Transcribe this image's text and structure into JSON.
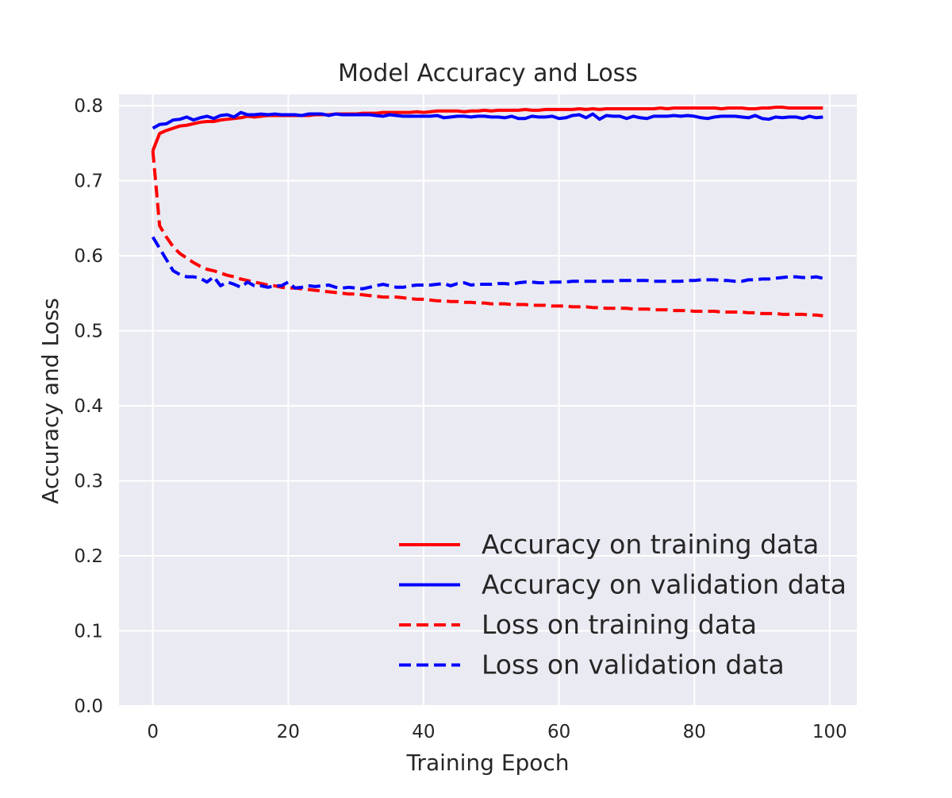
{
  "chart_data": {
    "type": "line",
    "title": "Model Accuracy and Loss",
    "xlabel": "Training Epoch",
    "ylabel": "Accuracy and Loss",
    "xlim": [
      -5,
      104
    ],
    "ylim": [
      0.0,
      0.815
    ],
    "xticks": [
      0,
      20,
      40,
      60,
      80,
      100
    ],
    "xtick_labels": [
      "0",
      "20",
      "40",
      "60",
      "80",
      "100"
    ],
    "yticks": [
      0.0,
      0.1,
      0.2,
      0.3,
      0.4,
      0.5,
      0.6,
      0.7,
      0.8
    ],
    "ytick_labels": [
      "0.0",
      "0.1",
      "0.2",
      "0.3",
      "0.4",
      "0.5",
      "0.6",
      "0.7",
      "0.8"
    ],
    "grid": true,
    "legend_position": "bottom-right",
    "background": "#eaeaf2",
    "grid_color": "#ffffff",
    "x": [
      0,
      1,
      2,
      3,
      4,
      5,
      6,
      7,
      8,
      9,
      10,
      11,
      12,
      13,
      14,
      15,
      16,
      17,
      18,
      19,
      20,
      21,
      22,
      23,
      24,
      25,
      26,
      27,
      28,
      29,
      30,
      31,
      32,
      33,
      34,
      35,
      36,
      37,
      38,
      39,
      40,
      41,
      42,
      43,
      44,
      45,
      46,
      47,
      48,
      49,
      50,
      51,
      52,
      53,
      54,
      55,
      56,
      57,
      58,
      59,
      60,
      61,
      62,
      63,
      64,
      65,
      66,
      67,
      68,
      69,
      70,
      71,
      72,
      73,
      74,
      75,
      76,
      77,
      78,
      79,
      80,
      81,
      82,
      83,
      84,
      85,
      86,
      87,
      88,
      89,
      90,
      91,
      92,
      93,
      94,
      95,
      96,
      97,
      98,
      99
    ],
    "series": [
      {
        "name": "Accuracy on training data",
        "color": "#ff0000",
        "dash": "solid",
        "values": [
          0.74,
          0.763,
          0.767,
          0.77,
          0.773,
          0.774,
          0.776,
          0.778,
          0.779,
          0.779,
          0.781,
          0.782,
          0.783,
          0.784,
          0.786,
          0.785,
          0.786,
          0.787,
          0.787,
          0.787,
          0.787,
          0.787,
          0.787,
          0.787,
          0.788,
          0.788,
          0.788,
          0.789,
          0.789,
          0.789,
          0.789,
          0.79,
          0.79,
          0.79,
          0.791,
          0.791,
          0.791,
          0.791,
          0.791,
          0.792,
          0.791,
          0.792,
          0.793,
          0.793,
          0.793,
          0.793,
          0.792,
          0.793,
          0.793,
          0.794,
          0.793,
          0.794,
          0.794,
          0.794,
          0.794,
          0.795,
          0.794,
          0.794,
          0.795,
          0.795,
          0.795,
          0.795,
          0.795,
          0.796,
          0.795,
          0.796,
          0.795,
          0.796,
          0.796,
          0.796,
          0.796,
          0.796,
          0.796,
          0.796,
          0.796,
          0.797,
          0.796,
          0.797,
          0.797,
          0.797,
          0.797,
          0.797,
          0.797,
          0.797,
          0.796,
          0.797,
          0.797,
          0.797,
          0.796,
          0.796,
          0.797,
          0.797,
          0.798,
          0.798,
          0.797,
          0.797,
          0.797,
          0.797,
          0.797,
          0.797
        ]
      },
      {
        "name": "Accuracy on validation data",
        "color": "#0000ff",
        "dash": "solid",
        "values": [
          0.77,
          0.775,
          0.776,
          0.781,
          0.782,
          0.785,
          0.781,
          0.784,
          0.786,
          0.783,
          0.787,
          0.788,
          0.785,
          0.791,
          0.788,
          0.788,
          0.789,
          0.788,
          0.789,
          0.788,
          0.788,
          0.788,
          0.787,
          0.789,
          0.789,
          0.789,
          0.787,
          0.789,
          0.788,
          0.788,
          0.788,
          0.788,
          0.788,
          0.787,
          0.786,
          0.788,
          0.787,
          0.786,
          0.786,
          0.786,
          0.786,
          0.786,
          0.787,
          0.784,
          0.785,
          0.786,
          0.786,
          0.785,
          0.786,
          0.786,
          0.785,
          0.785,
          0.784,
          0.786,
          0.783,
          0.783,
          0.786,
          0.785,
          0.785,
          0.786,
          0.783,
          0.784,
          0.787,
          0.788,
          0.784,
          0.789,
          0.782,
          0.787,
          0.786,
          0.786,
          0.783,
          0.786,
          0.784,
          0.783,
          0.786,
          0.786,
          0.786,
          0.787,
          0.786,
          0.787,
          0.786,
          0.784,
          0.783,
          0.785,
          0.786,
          0.786,
          0.786,
          0.785,
          0.784,
          0.787,
          0.783,
          0.782,
          0.785,
          0.784,
          0.785,
          0.785,
          0.783,
          0.786,
          0.784,
          0.785
        ]
      },
      {
        "name": "Loss on training data",
        "color": "#ff0000",
        "dash": "dashed",
        "values": [
          0.74,
          0.64,
          0.625,
          0.612,
          0.603,
          0.597,
          0.591,
          0.586,
          0.582,
          0.58,
          0.577,
          0.574,
          0.572,
          0.569,
          0.567,
          0.565,
          0.563,
          0.561,
          0.56,
          0.558,
          0.557,
          0.557,
          0.556,
          0.555,
          0.554,
          0.553,
          0.552,
          0.551,
          0.55,
          0.549,
          0.549,
          0.548,
          0.547,
          0.546,
          0.545,
          0.545,
          0.545,
          0.544,
          0.543,
          0.542,
          0.542,
          0.541,
          0.54,
          0.54,
          0.539,
          0.539,
          0.538,
          0.538,
          0.537,
          0.537,
          0.536,
          0.536,
          0.536,
          0.535,
          0.535,
          0.535,
          0.534,
          0.534,
          0.534,
          0.533,
          0.533,
          0.533,
          0.532,
          0.532,
          0.532,
          0.531,
          0.531,
          0.53,
          0.53,
          0.53,
          0.53,
          0.529,
          0.529,
          0.529,
          0.528,
          0.528,
          0.528,
          0.527,
          0.527,
          0.527,
          0.526,
          0.526,
          0.526,
          0.526,
          0.525,
          0.525,
          0.525,
          0.525,
          0.524,
          0.524,
          0.523,
          0.523,
          0.523,
          0.522,
          0.522,
          0.522,
          0.522,
          0.521,
          0.521,
          0.52
        ]
      },
      {
        "name": "Loss on validation data",
        "color": "#0000ff",
        "dash": "dashed",
        "values": [
          0.625,
          0.61,
          0.595,
          0.58,
          0.575,
          0.572,
          0.572,
          0.57,
          0.565,
          0.572,
          0.56,
          0.565,
          0.562,
          0.558,
          0.565,
          0.56,
          0.56,
          0.558,
          0.56,
          0.56,
          0.565,
          0.557,
          0.558,
          0.56,
          0.559,
          0.56,
          0.561,
          0.558,
          0.557,
          0.558,
          0.557,
          0.556,
          0.558,
          0.56,
          0.562,
          0.56,
          0.558,
          0.558,
          0.56,
          0.561,
          0.561,
          0.561,
          0.562,
          0.563,
          0.56,
          0.563,
          0.564,
          0.561,
          0.562,
          0.562,
          0.562,
          0.563,
          0.563,
          0.562,
          0.564,
          0.565,
          0.565,
          0.564,
          0.564,
          0.565,
          0.565,
          0.565,
          0.566,
          0.566,
          0.566,
          0.566,
          0.566,
          0.566,
          0.566,
          0.567,
          0.567,
          0.567,
          0.567,
          0.567,
          0.566,
          0.566,
          0.566,
          0.566,
          0.566,
          0.567,
          0.567,
          0.568,
          0.568,
          0.568,
          0.567,
          0.567,
          0.566,
          0.566,
          0.568,
          0.568,
          0.569,
          0.569,
          0.57,
          0.571,
          0.572,
          0.572,
          0.571,
          0.571,
          0.572,
          0.57
        ]
      }
    ]
  }
}
